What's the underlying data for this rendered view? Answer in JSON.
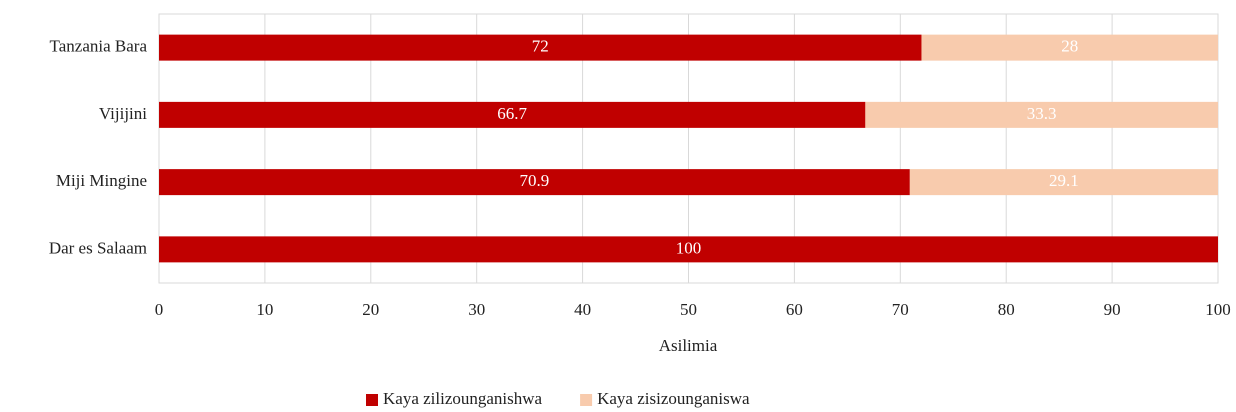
{
  "chart_data": {
    "type": "stacked_barh",
    "categories": [
      "Tanzania Bara",
      "Vijijini",
      "Miji Mingine",
      "Dar es Salaam"
    ],
    "series": [
      {
        "name": "Kaya zilizounganishwa",
        "color": "#c00000",
        "values": [
          72,
          66.7,
          70.9,
          100
        ]
      },
      {
        "name": "Kaya zisizounganiswa",
        "color": "#f8cbad",
        "values": [
          28,
          33.3,
          29.1,
          null
        ]
      }
    ],
    "xlabel": "Asilimia",
    "xlim": [
      0,
      100
    ],
    "xticks": [
      0,
      10,
      20,
      30,
      40,
      50,
      60,
      70,
      80,
      90,
      100
    ],
    "grid": true,
    "legend": "bottom"
  }
}
